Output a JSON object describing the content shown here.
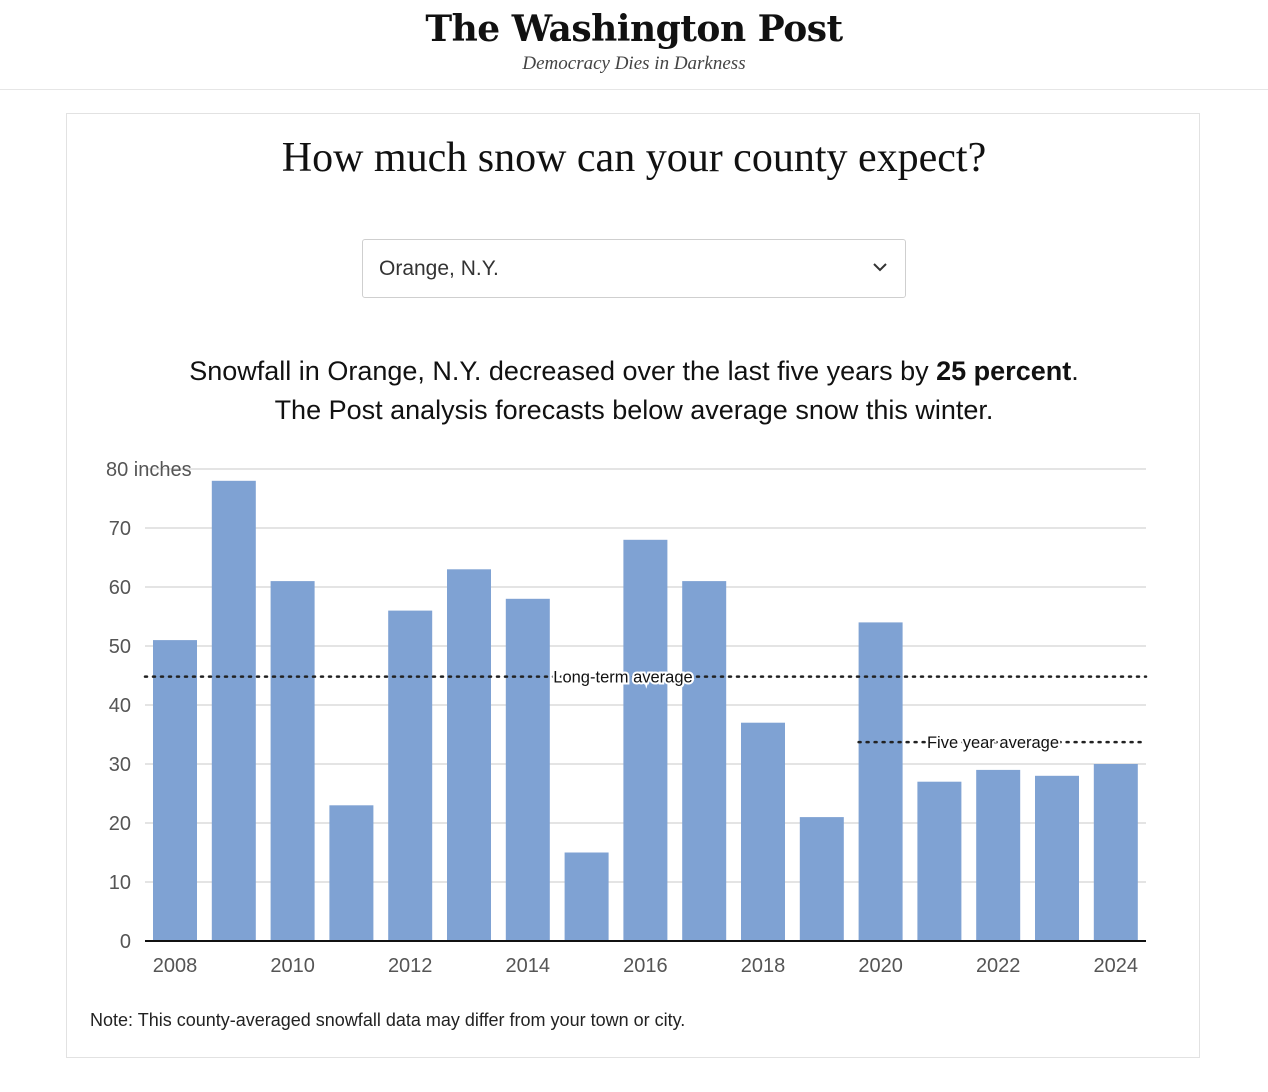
{
  "masthead": {
    "logo": "The Washington Post",
    "tagline": "Democracy Dies in Darkness"
  },
  "title": "How much snow can your county expect?",
  "county_select": {
    "value": "Orange, N.Y.",
    "icon": "chevron-down-icon"
  },
  "summary": {
    "before": "Snowfall in Orange, N.Y. decreased over the last five years by ",
    "bold": "25 percent",
    "after": ". The Post analysis forecasts below average snow this winter."
  },
  "chart_data": {
    "type": "bar",
    "categories": [
      "2008",
      "2009",
      "2010",
      "2011",
      "2012",
      "2013",
      "2014",
      "2015",
      "2016",
      "2017",
      "2018",
      "2019",
      "2020",
      "2021",
      "2022",
      "2023",
      "2024"
    ],
    "values": [
      51,
      78,
      61,
      23,
      56,
      63,
      58,
      15,
      68,
      61,
      37,
      21,
      54,
      27,
      29,
      28,
      30
    ],
    "x_tick_labels": [
      "2008",
      "2010",
      "2012",
      "2014",
      "2016",
      "2018",
      "2020",
      "2022",
      "2024"
    ],
    "y_ticks": [
      0,
      10,
      20,
      30,
      40,
      50,
      60,
      70,
      80
    ],
    "y_top_label": "80 inches",
    "ylim": [
      0,
      80
    ],
    "bar_color": "#7fa2d3",
    "reference_lines": [
      {
        "label": "Long-term average",
        "value": 44.8,
        "from": "2008",
        "to": "2024"
      },
      {
        "label": "Five year average",
        "value": 33.7,
        "from": "2020",
        "to": "2024"
      }
    ]
  },
  "note": "Note: This county-averaged snowfall data may differ from your town or city."
}
